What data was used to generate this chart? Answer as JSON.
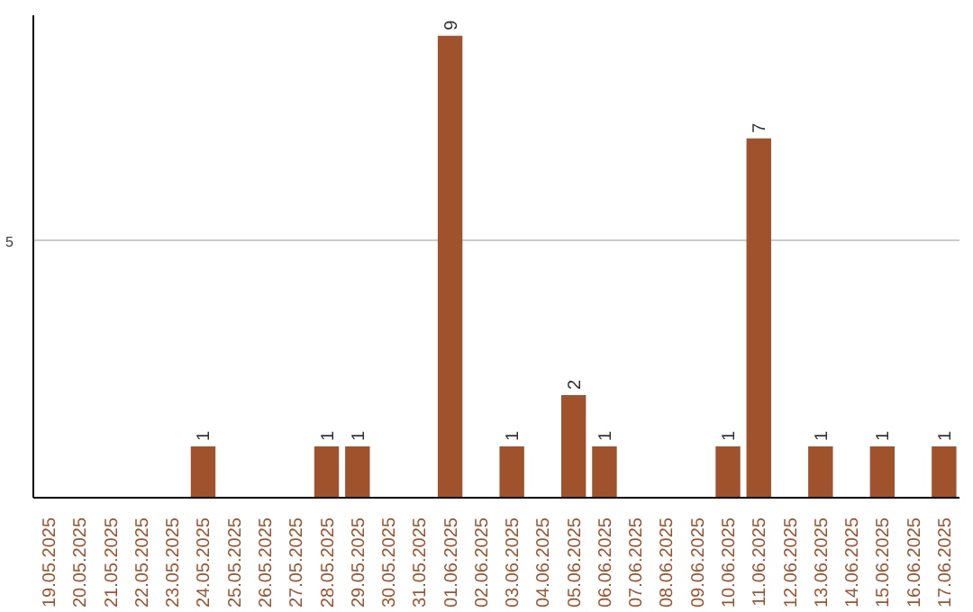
{
  "chart_data": {
    "type": "bar",
    "categories": [
      "19.05.2025",
      "20.05.2025",
      "21.05.2025",
      "22.05.2025",
      "23.05.2025",
      "24.05.2025",
      "25.05.2025",
      "26.05.2025",
      "27.05.2025",
      "28.05.2025",
      "29.05.2025",
      "30.05.2025",
      "31.05.2025",
      "01.06.2025",
      "02.06.2025",
      "03.06.2025",
      "04.06.2025",
      "05.06.2025",
      "06.06.2025",
      "07.06.2025",
      "08.06.2025",
      "09.06.2025",
      "10.06.2025",
      "11.06.2025",
      "12.06.2025",
      "13.06.2025",
      "14.06.2025",
      "15.06.2025",
      "16.06.2025",
      "17.06.2025"
    ],
    "values": [
      0,
      0,
      0,
      0,
      0,
      1,
      0,
      0,
      0,
      1,
      1,
      0,
      0,
      9,
      0,
      1,
      0,
      2,
      1,
      0,
      0,
      0,
      1,
      7,
      0,
      1,
      0,
      1,
      0,
      1
    ],
    "value_labels": [
      null,
      null,
      null,
      null,
      null,
      "1",
      null,
      null,
      null,
      "1",
      "1",
      null,
      null,
      "9",
      null,
      "1",
      null,
      "2",
      "1",
      null,
      null,
      null,
      "1",
      "7",
      null,
      "1",
      null,
      "1",
      null,
      "1"
    ],
    "color": "#a0522d",
    "ylim": [
      0,
      9.4
    ],
    "yticks": [
      5
    ],
    "grid": "y"
  }
}
